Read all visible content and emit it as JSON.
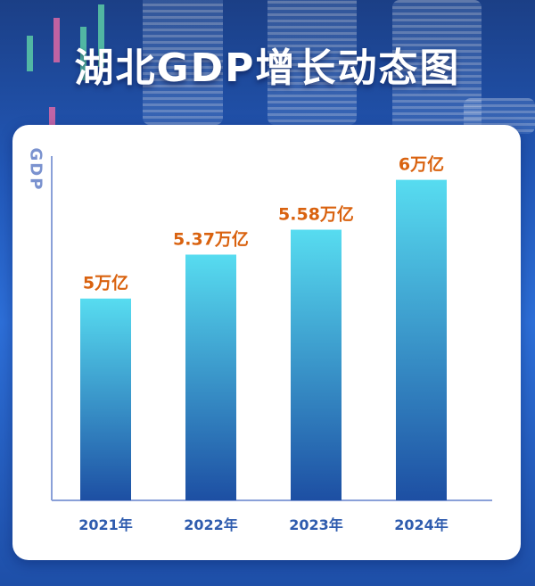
{
  "title": "湖北GDP增长动态图",
  "chart_data": {
    "type": "bar",
    "title": "湖北GDP增长动态图",
    "ylabel": "GDP",
    "xlabel": "",
    "categories": [
      "2021年",
      "2022年",
      "2023年",
      "2024年"
    ],
    "values": [
      5,
      5.37,
      5.58,
      6
    ],
    "data_labels": [
      "5万亿",
      "5.37万亿",
      "5.58万亿",
      "6万亿"
    ],
    "unit": "万亿",
    "ylim": [
      3.3,
      6.2
    ],
    "grid": false,
    "legend": "none",
    "colors": {
      "bar_top": "#57dcf0",
      "bar_bottom": "#1d4fa3",
      "label": "#d9620f",
      "axis": "#8aa0d8",
      "tick_text": "#2f5cae"
    }
  }
}
